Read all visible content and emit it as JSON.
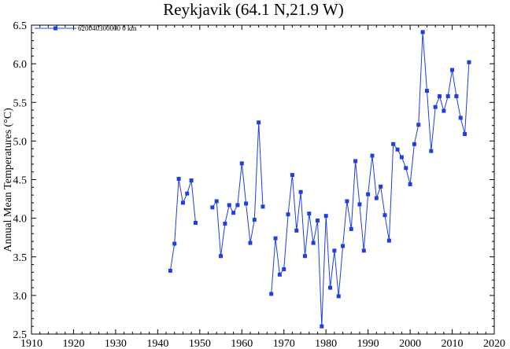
{
  "chart_data": {
    "type": "line",
    "title": "Reykjavik (64.1 N,21.9 W)",
    "xlabel": "",
    "ylabel": "Annual Mean Temperatures (°C)",
    "xlim": [
      1910,
      2020
    ],
    "ylim": [
      2.5,
      6.5
    ],
    "xticks": [
      1910,
      1920,
      1930,
      1940,
      1950,
      1960,
      1970,
      1980,
      1990,
      2000,
      2010,
      2020
    ],
    "yticks": [
      2.5,
      3.0,
      3.5,
      4.0,
      4.5,
      5.0,
      5.5,
      6.0,
      6.5
    ],
    "grid": false,
    "legend_position": "top-left",
    "series": [
      {
        "name": "620040300000  0 km",
        "color": "#1f3fe0",
        "segments": [
          {
            "x": [
              1943,
              1944,
              1945,
              1946,
              1947,
              1948,
              1949
            ],
            "y": [
              3.32,
              3.67,
              4.51,
              4.2,
              4.32,
              4.49,
              3.94
            ]
          },
          {
            "x": [
              1953,
              1954,
              1955,
              1956,
              1957,
              1958,
              1959,
              1960,
              1961,
              1962,
              1963,
              1964,
              1965
            ],
            "y": [
              4.14,
              4.22,
              3.51,
              3.93,
              4.17,
              4.07,
              4.17,
              4.71,
              4.19,
              3.68,
              3.98,
              5.24,
              4.15
            ]
          },
          {
            "x": [
              1967,
              1968,
              1969,
              1970,
              1971,
              1972,
              1973,
              1974,
              1975,
              1976,
              1977,
              1978,
              1979,
              1980,
              1981,
              1982,
              1983,
              1984,
              1985,
              1986,
              1987,
              1988,
              1989,
              1990,
              1991,
              1992,
              1993,
              1994,
              1995,
              1996,
              1997,
              1998,
              1999,
              2000,
              2001,
              2002,
              2003,
              2004,
              2005,
              2006,
              2007,
              2008,
              2009,
              2010,
              2011,
              2012,
              2013,
              2014
            ],
            "y": [
              3.02,
              3.74,
              3.27,
              3.34,
              4.05,
              4.56,
              3.84,
              4.34,
              3.51,
              4.06,
              3.68,
              3.97,
              2.6,
              4.03,
              3.1,
              3.58,
              2.99,
              3.64,
              4.22,
              3.86,
              4.74,
              4.18,
              3.58,
              4.31,
              4.81,
              4.26,
              4.41,
              4.04,
              3.71,
              4.96,
              4.89,
              4.79,
              4.65,
              4.44,
              4.96,
              5.21,
              6.41,
              5.65,
              4.87,
              5.44,
              5.58,
              5.39,
              5.58,
              5.92,
              5.58,
              5.3,
              5.09,
              6.02
            ]
          }
        ]
      }
    ]
  }
}
